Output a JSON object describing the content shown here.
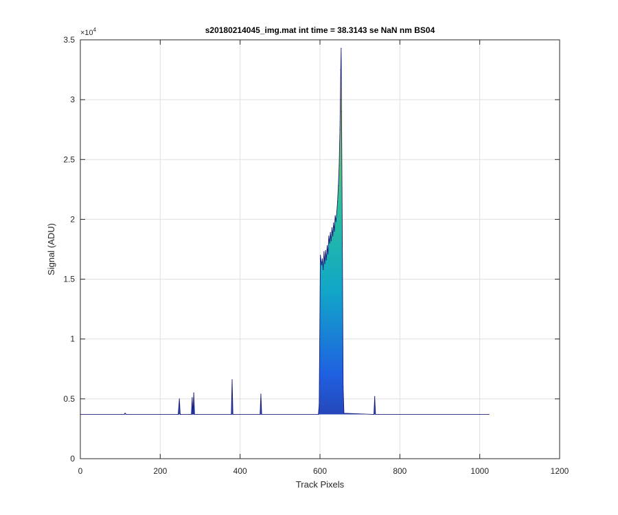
{
  "chart_data": {
    "type": "area",
    "title": "s20180214045_img.mat int time = 38.3143 se  NaN nm BS04",
    "xlabel": "Track Pixels",
    "ylabel": "Signal (ADU)",
    "xlim": [
      0,
      1200
    ],
    "ylim": [
      0,
      35000
    ],
    "xticks": [
      0,
      200,
      400,
      600,
      800,
      1000,
      1200
    ],
    "yticks": [
      0,
      5000,
      10000,
      15000,
      20000,
      25000,
      30000,
      35000
    ],
    "ytick_labels": [
      "0",
      "0.5",
      "1",
      "1.5",
      "2",
      "2.5",
      "3",
      "3.5"
    ],
    "y_exponent_label": "×10",
    "y_exponent_power": "4",
    "grid": true,
    "colormap": [
      "#2c2c8f",
      "#1f60e0",
      "#11a6c8",
      "#2bbf9a",
      "#8cc04a",
      "#f0d230"
    ],
    "baseline": 3700,
    "x": [
      0,
      110,
      112,
      115,
      245,
      248,
      250,
      252,
      278,
      280,
      282,
      284,
      286,
      378,
      380,
      382,
      450,
      452,
      454,
      596,
      598,
      601,
      604,
      606,
      608,
      610,
      612,
      614,
      616,
      618,
      620,
      622,
      624,
      626,
      628,
      630,
      632,
      634,
      636,
      638,
      640,
      642,
      644,
      646,
      648,
      650,
      651,
      652,
      653,
      654,
      656,
      658,
      660,
      735,
      737,
      739,
      1023
    ],
    "y": [
      3700,
      3700,
      3800,
      3700,
      3700,
      5000,
      3700,
      3700,
      3700,
      5100,
      3700,
      5500,
      3700,
      3700,
      6600,
      3700,
      3700,
      5400,
      3700,
      3700,
      4500,
      17000,
      16200,
      16700,
      15800,
      17300,
      16300,
      17400,
      16600,
      17800,
      17100,
      18600,
      18000,
      18900,
      18200,
      19300,
      18600,
      19700,
      19000,
      20300,
      19800,
      20600,
      21500,
      22800,
      24500,
      27500,
      30000,
      32500,
      34300,
      29000,
      18000,
      6000,
      3800,
      3700,
      5200,
      3700,
      3700
    ]
  }
}
